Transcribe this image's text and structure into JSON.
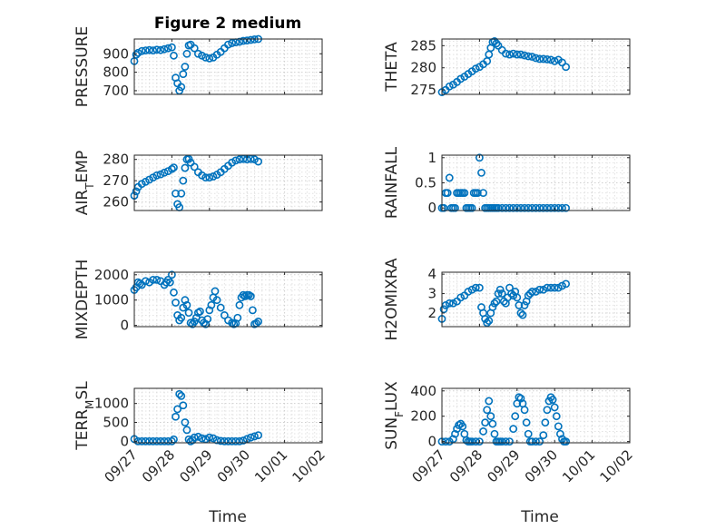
{
  "figure": {
    "title": "Figure 2 medium",
    "x_tick_labels": [
      "09/27",
      "09/28",
      "09/29",
      "09/30",
      "10/01",
      "10/02"
    ],
    "x_label": "Time",
    "marker_color": "#0072BD"
  },
  "chart_data": [
    {
      "type": "scatter",
      "title": "Figure 2 medium",
      "ylabel": "PRESSURE",
      "xlabel": "",
      "x_unit": "days since 09/27",
      "xlim": [
        0,
        5
      ],
      "ylim": [
        680,
        980
      ],
      "yticks": [
        700,
        800,
        900
      ],
      "grid": true,
      "x": [
        0.0,
        0.05,
        0.1,
        0.2,
        0.3,
        0.4,
        0.5,
        0.6,
        0.7,
        0.8,
        0.9,
        1.0,
        1.05,
        1.1,
        1.15,
        1.2,
        1.25,
        1.3,
        1.35,
        1.4,
        1.45,
        1.5,
        1.6,
        1.7,
        1.8,
        1.9,
        2.0,
        2.1,
        2.2,
        2.3,
        2.4,
        2.5,
        2.6,
        2.7,
        2.8,
        2.9,
        3.0,
        3.1,
        3.2,
        3.3
      ],
      "y": [
        860,
        895,
        905,
        915,
        918,
        920,
        918,
        922,
        920,
        925,
        930,
        935,
        890,
        770,
        740,
        700,
        720,
        790,
        830,
        900,
        945,
        950,
        930,
        900,
        890,
        880,
        875,
        880,
        895,
        910,
        930,
        950,
        958,
        962,
        965,
        970,
        972,
        975,
        978,
        980
      ]
    },
    {
      "type": "scatter",
      "ylabel": "THETA",
      "xlabel": "",
      "xlim": [
        0,
        5
      ],
      "ylim": [
        274,
        286.5
      ],
      "yticks": [
        275,
        280,
        285
      ],
      "grid": true,
      "x": [
        0.0,
        0.1,
        0.2,
        0.3,
        0.4,
        0.5,
        0.6,
        0.7,
        0.8,
        0.9,
        1.0,
        1.1,
        1.2,
        1.25,
        1.3,
        1.35,
        1.4,
        1.45,
        1.5,
        1.6,
        1.7,
        1.8,
        1.9,
        2.0,
        2.1,
        2.2,
        2.3,
        2.4,
        2.5,
        2.6,
        2.7,
        2.8,
        2.9,
        3.0,
        3.1,
        3.2,
        3.3
      ],
      "y": [
        274.5,
        275,
        275.8,
        276.2,
        276.8,
        277.5,
        278,
        278.6,
        279.2,
        279.8,
        280.2,
        280.8,
        281.5,
        283,
        284.5,
        285.8,
        286,
        285.5,
        285,
        284,
        283.2,
        283,
        283.2,
        283,
        283,
        282.8,
        282.6,
        282.5,
        282.2,
        282,
        282,
        281.9,
        281.8,
        281.5,
        281.8,
        281.2,
        280.2
      ]
    },
    {
      "type": "scatter",
      "ylabel": "AIR_TEMP",
      "xlabel": "",
      "xlim": [
        0,
        5
      ],
      "ylim": [
        256,
        282
      ],
      "yticks": [
        260,
        270,
        280
      ],
      "grid": true,
      "x": [
        0.0,
        0.05,
        0.1,
        0.2,
        0.3,
        0.4,
        0.5,
        0.6,
        0.7,
        0.8,
        0.9,
        1.0,
        1.05,
        1.1,
        1.15,
        1.2,
        1.25,
        1.3,
        1.35,
        1.4,
        1.45,
        1.5,
        1.6,
        1.7,
        1.8,
        1.9,
        2.0,
        2.1,
        2.2,
        2.3,
        2.4,
        2.5,
        2.6,
        2.7,
        2.8,
        2.9,
        3.0,
        3.1,
        3.2,
        3.3
      ],
      "y": [
        263,
        265,
        267,
        268.5,
        269.5,
        270.5,
        271.5,
        272.5,
        273,
        273.8,
        274.5,
        275.5,
        276.2,
        264,
        259,
        257.5,
        264,
        270,
        276,
        280,
        280.2,
        278.5,
        276.5,
        274,
        272.5,
        271.5,
        271.5,
        272,
        272.8,
        274,
        275.5,
        277,
        278.5,
        279.5,
        280,
        280.2,
        280,
        280.2,
        280,
        279
      ]
    },
    {
      "type": "scatter",
      "ylabel": "RAINFALL",
      "xlabel": "",
      "xlim": [
        0,
        5
      ],
      "ylim": [
        -0.05,
        1.05
      ],
      "yticks": [
        0,
        0.5,
        1
      ],
      "grid": true,
      "x": [
        0.0,
        0.05,
        0.1,
        0.15,
        0.2,
        0.25,
        0.3,
        0.35,
        0.4,
        0.45,
        0.5,
        0.55,
        0.6,
        0.65,
        0.7,
        0.75,
        0.8,
        0.85,
        0.9,
        0.95,
        1.0,
        1.05,
        1.1,
        1.15,
        1.2,
        1.25,
        1.3,
        1.35,
        1.4,
        1.45,
        1.5,
        1.6,
        1.7,
        1.8,
        1.9,
        2.0,
        2.1,
        2.2,
        2.3,
        2.4,
        2.5,
        2.6,
        2.7,
        2.8,
        2.9,
        3.0,
        3.1,
        3.2,
        3.3
      ],
      "y": [
        0,
        0,
        0.3,
        0.3,
        0.6,
        0,
        0,
        0,
        0.3,
        0.3,
        0.3,
        0.3,
        0.3,
        0,
        0,
        0,
        0,
        0.3,
        0.3,
        0.3,
        1.0,
        0.7,
        0.3,
        0,
        0,
        0,
        0,
        0,
        0,
        0,
        0,
        0,
        0,
        0,
        0,
        0,
        0,
        0,
        0,
        0,
        0,
        0,
        0,
        0,
        0,
        0,
        0,
        0,
        0
      ]
    },
    {
      "type": "scatter",
      "ylabel": "MIXDEPTH",
      "xlabel": "",
      "xlim": [
        0,
        5
      ],
      "ylim": [
        -50,
        2100
      ],
      "yticks": [
        0,
        1000,
        2000
      ],
      "grid": true,
      "x": [
        0.0,
        0.05,
        0.1,
        0.15,
        0.2,
        0.3,
        0.4,
        0.5,
        0.6,
        0.7,
        0.8,
        0.85,
        0.9,
        0.95,
        1.0,
        1.05,
        1.1,
        1.15,
        1.2,
        1.25,
        1.3,
        1.35,
        1.4,
        1.45,
        1.5,
        1.55,
        1.6,
        1.65,
        1.7,
        1.75,
        1.8,
        1.85,
        1.9,
        1.95,
        2.0,
        2.05,
        2.1,
        2.15,
        2.2,
        2.3,
        2.4,
        2.5,
        2.6,
        2.65,
        2.7,
        2.75,
        2.8,
        2.85,
        2.9,
        2.95,
        3.0,
        3.05,
        3.1,
        3.15,
        3.2,
        3.25,
        3.3
      ],
      "y": [
        1400,
        1500,
        1700,
        1650,
        1600,
        1750,
        1700,
        1800,
        1800,
        1750,
        1600,
        1700,
        1800,
        1700,
        2000,
        1300,
        900,
        400,
        200,
        300,
        700,
        1000,
        800,
        500,
        100,
        50,
        150,
        300,
        500,
        550,
        200,
        100,
        50,
        250,
        600,
        800,
        1100,
        1350,
        1000,
        700,
        400,
        200,
        100,
        50,
        80,
        300,
        800,
        1100,
        1200,
        1150,
        1200,
        1200,
        1150,
        600,
        50,
        80,
        150
      ]
    },
    {
      "type": "scatter",
      "ylabel": "H2OMIXRA",
      "xlabel": "",
      "xlim": [
        0,
        5
      ],
      "ylim": [
        1.3,
        4.1
      ],
      "yticks": [
        2,
        3,
        4
      ],
      "grid": true,
      "x": [
        0.0,
        0.05,
        0.1,
        0.2,
        0.3,
        0.4,
        0.5,
        0.6,
        0.7,
        0.8,
        0.9,
        1.0,
        1.05,
        1.1,
        1.15,
        1.2,
        1.25,
        1.3,
        1.35,
        1.4,
        1.45,
        1.5,
        1.55,
        1.6,
        1.65,
        1.7,
        1.75,
        1.8,
        1.85,
        1.9,
        1.95,
        2.0,
        2.05,
        2.1,
        2.15,
        2.2,
        2.25,
        2.3,
        2.35,
        2.4,
        2.5,
        2.6,
        2.7,
        2.8,
        2.9,
        3.0,
        3.1,
        3.2,
        3.3
      ],
      "y": [
        1.7,
        2.2,
        2.4,
        2.5,
        2.5,
        2.6,
        2.8,
        2.9,
        3.1,
        3.2,
        3.3,
        3.3,
        2.3,
        2.0,
        1.7,
        1.5,
        1.6,
        2.0,
        2.3,
        2.5,
        2.6,
        3.0,
        3.2,
        3.0,
        2.6,
        2.5,
        2.8,
        3.3,
        3.0,
        2.9,
        3.1,
        2.8,
        2.4,
        2.0,
        1.9,
        2.4,
        2.6,
        2.9,
        3.0,
        3.1,
        3.1,
        3.2,
        3.2,
        3.3,
        3.3,
        3.3,
        3.3,
        3.4,
        3.5
      ]
    },
    {
      "type": "scatter",
      "ylabel": "TERR_MSL",
      "xlabel": "Time",
      "xlim": [
        0,
        5
      ],
      "ylim": [
        -40,
        1400
      ],
      "yticks": [
        0,
        500,
        1000
      ],
      "grid": true,
      "x": [
        0.0,
        0.1,
        0.2,
        0.3,
        0.4,
        0.5,
        0.6,
        0.7,
        0.8,
        0.9,
        1.0,
        1.05,
        1.1,
        1.15,
        1.2,
        1.25,
        1.3,
        1.35,
        1.4,
        1.45,
        1.5,
        1.55,
        1.6,
        1.7,
        1.8,
        1.9,
        2.0,
        2.1,
        2.2,
        2.3,
        2.4,
        2.5,
        2.6,
        2.7,
        2.8,
        2.9,
        3.0,
        3.1,
        3.2,
        3.3
      ],
      "y": [
        60,
        0,
        0,
        0,
        0,
        0,
        0,
        0,
        0,
        0,
        0,
        50,
        650,
        850,
        1250,
        1200,
        950,
        500,
        300,
        50,
        0,
        30,
        100,
        120,
        80,
        60,
        100,
        80,
        30,
        10,
        0,
        0,
        0,
        0,
        0,
        20,
        60,
        100,
        130,
        160
      ]
    },
    {
      "type": "scatter",
      "ylabel": "SUN_FLUX",
      "xlabel": "Time",
      "xlim": [
        0,
        5
      ],
      "ylim": [
        -10,
        420
      ],
      "yticks": [
        0,
        200,
        400
      ],
      "grid": true,
      "x": [
        0.0,
        0.1,
        0.2,
        0.3,
        0.35,
        0.4,
        0.45,
        0.5,
        0.55,
        0.6,
        0.65,
        0.7,
        0.75,
        0.8,
        0.9,
        1.0,
        1.1,
        1.15,
        1.2,
        1.25,
        1.3,
        1.35,
        1.4,
        1.45,
        1.5,
        1.55,
        1.6,
        1.7,
        1.8,
        1.9,
        1.95,
        2.0,
        2.05,
        2.1,
        2.15,
        2.2,
        2.25,
        2.3,
        2.35,
        2.4,
        2.5,
        2.6,
        2.7,
        2.75,
        2.8,
        2.85,
        2.9,
        2.95,
        3.0,
        3.05,
        3.1,
        3.15,
        3.2,
        3.25,
        3.3
      ],
      "y": [
        0,
        0,
        0,
        20,
        60,
        100,
        130,
        140,
        120,
        60,
        10,
        0,
        0,
        0,
        0,
        0,
        80,
        150,
        250,
        320,
        200,
        140,
        60,
        0,
        0,
        0,
        0,
        0,
        0,
        100,
        200,
        300,
        350,
        340,
        300,
        250,
        150,
        60,
        0,
        0,
        0,
        0,
        50,
        150,
        250,
        320,
        350,
        330,
        270,
        200,
        120,
        60,
        20,
        0,
        0
      ]
    }
  ]
}
